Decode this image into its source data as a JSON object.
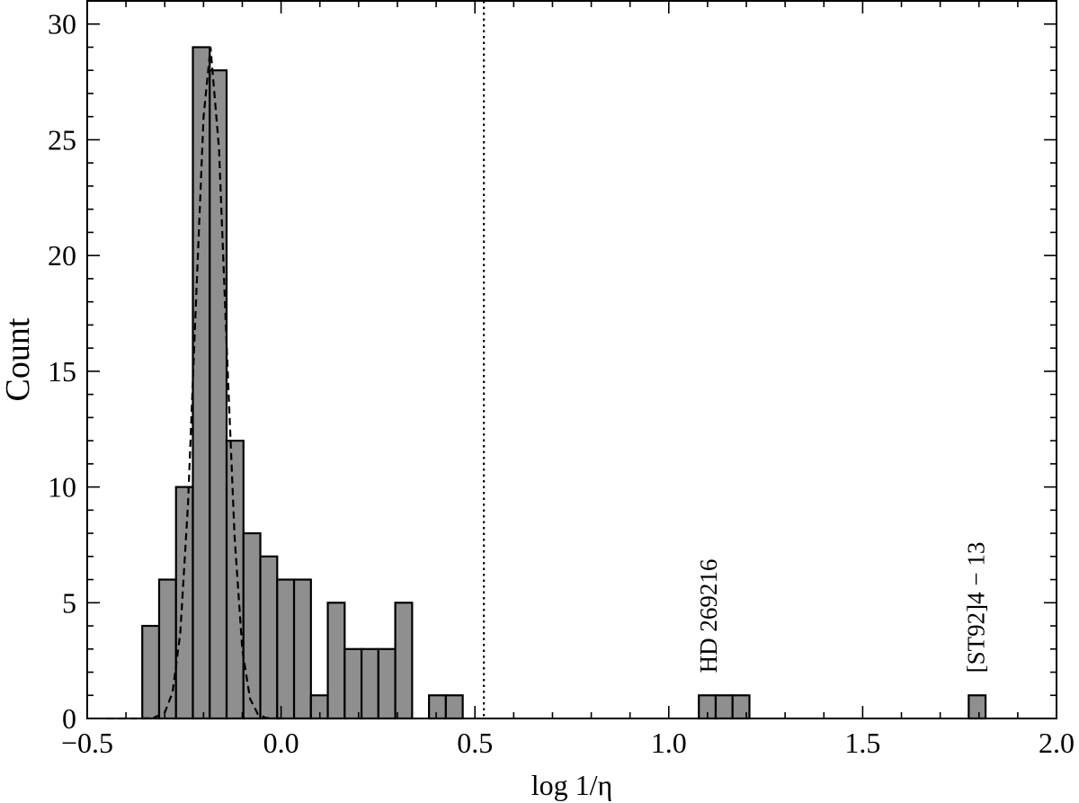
{
  "chart_data": {
    "type": "histogram",
    "xlabel": "log 1/η",
    "ylabel": "Count",
    "bins": [
      -0.358,
      -0.3145,
      -0.271,
      -0.2275,
      -0.184,
      -0.1405,
      -0.097,
      -0.0535,
      -0.01,
      0.0335,
      0.077,
      0.1205,
      0.164,
      0.2075,
      0.251,
      0.2945,
      0.338,
      0.3815,
      0.425,
      0.4685,
      0.512,
      0.5555,
      0.599,
      0.6425,
      0.686,
      0.7295,
      0.773,
      0.8165,
      0.86,
      0.9035,
      0.947,
      0.9905,
      1.034,
      1.0775,
      1.121,
      1.1645,
      1.208,
      1.2515,
      1.295,
      1.3385,
      1.382,
      1.4255,
      1.469,
      1.5125,
      1.556,
      1.5995,
      1.643,
      1.6865,
      1.73,
      1.7735,
      1.817
    ],
    "values": [
      4,
      6,
      10,
      29,
      28,
      12,
      8,
      7,
      6,
      6,
      1,
      5,
      3,
      3,
      3,
      5,
      0,
      1,
      1,
      0,
      0,
      0,
      0,
      0,
      0,
      0,
      0,
      0,
      0,
      0,
      0,
      0,
      0,
      1,
      1,
      1,
      0,
      0,
      0,
      0,
      0,
      0,
      0,
      0,
      0,
      0,
      0,
      0,
      0,
      1
    ],
    "color": "#8f8f8f",
    "fit": {
      "x": [
        -0.45,
        -0.4,
        -0.36,
        -0.33,
        -0.3,
        -0.28,
        -0.26,
        -0.24,
        -0.22,
        -0.2,
        -0.182,
        -0.16,
        -0.14,
        -0.12,
        -0.1,
        -0.08,
        -0.06,
        -0.04,
        -0.02,
        0.0
      ],
      "y": [
        0,
        0,
        0.0006,
        0.02,
        0.26,
        1.12,
        3.69,
        9.27,
        17.77,
        25.98,
        29,
        24.6,
        15.95,
        7.88,
        2.97,
        0.85,
        0.19,
        0.03,
        0.004,
        0
      ]
    },
    "vline": 0.523,
    "annotations": [
      {
        "text": "HD 269216",
        "x": 1.1,
        "y": 1.5
      },
      {
        "text": "[ST92]4 − 13",
        "x": 1.79,
        "y": 1.5
      }
    ],
    "xlim": [
      -0.5,
      2.0
    ],
    "ylim": [
      0,
      31
    ],
    "xticks": [
      {
        "value": -0.5,
        "label": "−0.5"
      },
      {
        "value": 0,
        "label": "0.0"
      },
      {
        "value": 0.5,
        "label": "0.5"
      },
      {
        "value": 1,
        "label": "1.0"
      },
      {
        "value": 1.5,
        "label": "1.5"
      },
      {
        "value": 2,
        "label": "2.0"
      }
    ],
    "yticks": [
      0,
      5,
      10,
      15,
      20,
      25,
      30
    ],
    "xminorticks": [
      -0.4,
      -0.3,
      -0.2,
      -0.1,
      0.1,
      0.2,
      0.3,
      0.4,
      0.6,
      0.7,
      0.8,
      0.9,
      1.1,
      1.2,
      1.3,
      1.4,
      1.6,
      1.7,
      1.8,
      1.9
    ],
    "yminorticks": [
      1,
      2,
      3,
      4,
      6,
      7,
      8,
      9,
      11,
      12,
      13,
      14,
      16,
      17,
      18,
      19,
      21,
      22,
      23,
      24,
      26,
      27,
      28,
      29,
      31
    ]
  }
}
